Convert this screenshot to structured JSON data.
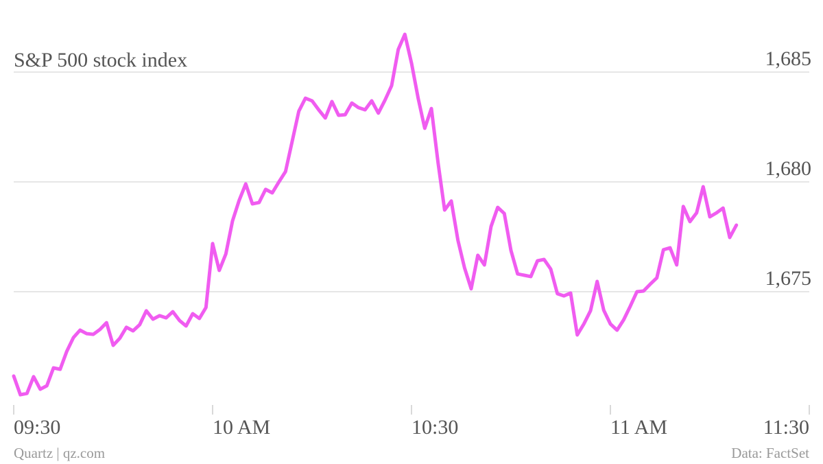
{
  "chart_data": {
    "type": "line",
    "title": "S&P 500 stock index",
    "credit": "Quartz | qz.com",
    "source": "Data: FactSet",
    "x": [
      "09:30",
      "09:31",
      "09:32",
      "09:33",
      "09:34",
      "09:35",
      "09:36",
      "09:37",
      "09:38",
      "09:39",
      "09:40",
      "09:41",
      "09:42",
      "09:43",
      "09:44",
      "09:45",
      "09:46",
      "09:47",
      "09:48",
      "09:49",
      "09:50",
      "09:51",
      "09:52",
      "09:53",
      "09:54",
      "09:55",
      "09:56",
      "09:57",
      "09:58",
      "09:59",
      "10:00",
      "10:01",
      "10:02",
      "10:03",
      "10:04",
      "10:05",
      "10:06",
      "10:07",
      "10:08",
      "10:09",
      "10:10",
      "10:11",
      "10:12",
      "10:13",
      "10:14",
      "10:15",
      "10:16",
      "10:17",
      "10:18",
      "10:19",
      "10:20",
      "10:21",
      "10:22",
      "10:23",
      "10:24",
      "10:25",
      "10:26",
      "10:27",
      "10:28",
      "10:29",
      "10:30",
      "10:31",
      "10:32",
      "10:33",
      "10:34",
      "10:35",
      "10:36",
      "10:37",
      "10:38",
      "10:39",
      "10:40",
      "10:41",
      "10:42",
      "10:43",
      "10:44",
      "10:45",
      "10:46",
      "10:47",
      "10:48",
      "10:49",
      "10:50",
      "10:51",
      "10:52",
      "10:53",
      "10:54",
      "10:55",
      "10:56",
      "10:57",
      "10:58",
      "10:59",
      "11:00",
      "11:01",
      "11:02",
      "11:03",
      "11:04",
      "11:05",
      "11:06",
      "11:07",
      "11:08",
      "11:09",
      "11:10",
      "11:11",
      "11:12",
      "11:13",
      "11:14",
      "11:15",
      "11:16",
      "11:17",
      "11:18",
      "11:19"
    ],
    "series": [
      {
        "color": "#f05cf0",
        "values": [
          1671.16,
          1670.31,
          1670.37,
          1671.13,
          1670.56,
          1670.72,
          1671.53,
          1671.47,
          1672.28,
          1672.91,
          1673.25,
          1673.09,
          1673.06,
          1673.28,
          1673.59,
          1672.56,
          1672.88,
          1673.38,
          1673.22,
          1673.5,
          1674.13,
          1673.75,
          1673.91,
          1673.81,
          1674.09,
          1673.69,
          1673.44,
          1674.0,
          1673.78,
          1674.28,
          1677.19,
          1675.97,
          1676.72,
          1678.22,
          1679.16,
          1679.91,
          1679.0,
          1679.06,
          1679.66,
          1679.5,
          1680.0,
          1680.47,
          1681.84,
          1683.22,
          1683.81,
          1683.69,
          1683.28,
          1682.91,
          1683.66,
          1683.03,
          1683.06,
          1683.59,
          1683.38,
          1683.28,
          1683.69,
          1683.13,
          1683.72,
          1684.38,
          1686.03,
          1686.72,
          1685.41,
          1683.81,
          1682.44,
          1683.34,
          1680.88,
          1678.72,
          1679.13,
          1677.34,
          1676.09,
          1675.13,
          1676.66,
          1676.22,
          1677.97,
          1678.84,
          1678.56,
          1676.88,
          1675.81,
          1675.75,
          1675.69,
          1676.41,
          1676.47,
          1676.03,
          1674.91,
          1674.81,
          1674.94,
          1673.03,
          1673.53,
          1674.13,
          1675.47,
          1674.16,
          1673.53,
          1673.25,
          1673.72,
          1674.34,
          1675.0,
          1675.03,
          1675.34,
          1675.63,
          1676.91,
          1677.0,
          1676.22,
          1678.88,
          1678.19,
          1678.59,
          1679.78,
          1678.41,
          1678.59,
          1678.81,
          1677.47,
          1678.03
        ]
      }
    ],
    "xlim": [
      "09:30",
      "11:30"
    ],
    "xticks": [
      "09:30",
      {
        "value": "10:00",
        "label": "10 AM"
      },
      "10:30",
      {
        "value": "11:00",
        "label": "11 AM"
      },
      "11:30"
    ],
    "ylim": [
      1669.5,
      1687
    ],
    "yticks": [
      {
        "value": 1675,
        "label": "1,675"
      },
      {
        "value": 1680,
        "label": "1,680"
      },
      {
        "value": 1685,
        "label": "1,685"
      }
    ],
    "grid": true
  }
}
